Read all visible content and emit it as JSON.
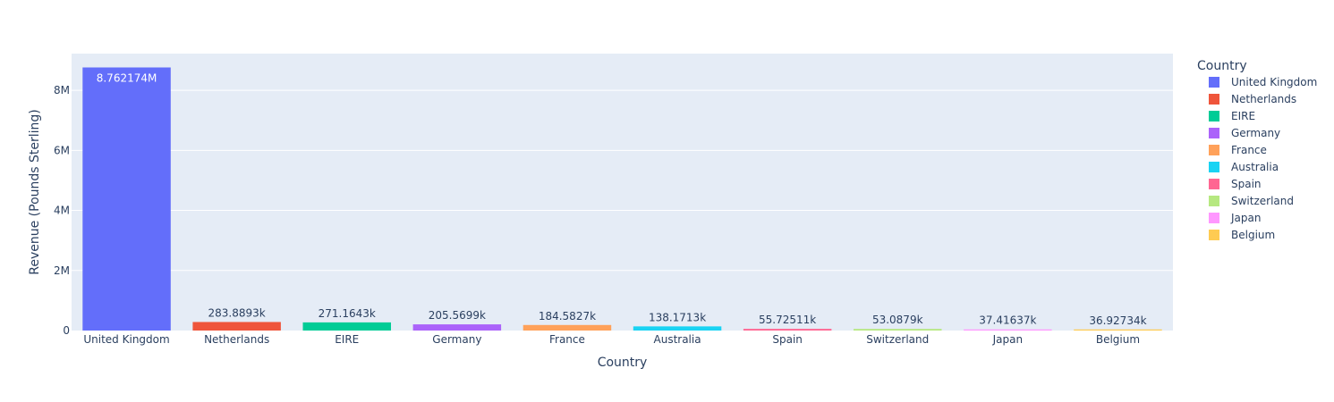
{
  "chart_data": {
    "type": "bar",
    "xlabel": "Country",
    "ylabel": "Revenue (Pounds Sterling)",
    "ylim": [
      0,
      9223341
    ],
    "y_ticks": [
      0,
      2000000,
      4000000,
      6000000,
      8000000
    ],
    "y_tick_labels": [
      "0",
      "2M",
      "4M",
      "6M",
      "8M"
    ],
    "grid": true,
    "legend": {
      "title": "Country",
      "placement": "right"
    },
    "categories": [
      "United Kingdom",
      "Netherlands",
      "EIRE",
      "Germany",
      "France",
      "Australia",
      "Spain",
      "Switzerland",
      "Japan",
      "Belgium"
    ],
    "values": [
      8762174,
      283889.3,
      271164.3,
      205569.9,
      184582.7,
      138171.3,
      55725.11,
      53087.9,
      37416.37,
      36927.34
    ],
    "value_labels": [
      "8.762174M",
      "283.8893k",
      "271.1643k",
      "205.5699k",
      "184.5827k",
      "138.1713k",
      "55.72511k",
      "53.0879k",
      "37.41637k",
      "36.92734k"
    ],
    "colors": [
      "#636efa",
      "#EF553B",
      "#00cc96",
      "#ab63fa",
      "#FFA15A",
      "#19d3f3",
      "#FF6692",
      "#B6E880",
      "#FF97FF",
      "#FECB52"
    ]
  }
}
